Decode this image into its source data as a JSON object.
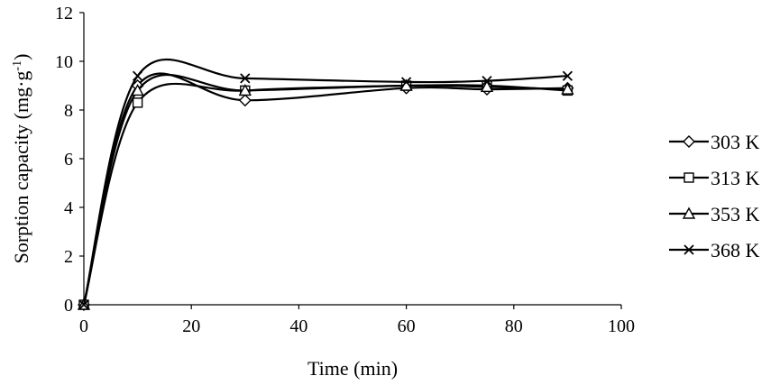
{
  "chart_data": {
    "type": "line",
    "title": "",
    "xlabel": "Time (min)",
    "ylabel": "Sorption capacity (mg·g",
    "ylabel_sup": "-1",
    "ylabel_close": ")",
    "xlim": [
      0,
      100
    ],
    "ylim": [
      0,
      12
    ],
    "xticks": [
      0,
      20,
      40,
      60,
      80,
      100
    ],
    "yticks": [
      0,
      2,
      4,
      6,
      8,
      10,
      12
    ],
    "grid": false,
    "legend_position": "right",
    "x": [
      0,
      10,
      30,
      60,
      75,
      90
    ],
    "series": [
      {
        "name": "303 K",
        "marker": "diamond",
        "values": [
          0,
          9.0,
          8.4,
          8.9,
          8.85,
          8.9
        ]
      },
      {
        "name": "313 K",
        "marker": "square",
        "values": [
          0,
          8.3,
          8.8,
          9.0,
          9.0,
          8.8
        ]
      },
      {
        "name": "353 K",
        "marker": "triangle",
        "values": [
          0,
          8.8,
          8.8,
          9.0,
          8.95,
          8.85
        ]
      },
      {
        "name": "368 K",
        "marker": "x",
        "values": [
          0,
          9.4,
          9.3,
          9.15,
          9.2,
          9.4
        ]
      }
    ]
  }
}
